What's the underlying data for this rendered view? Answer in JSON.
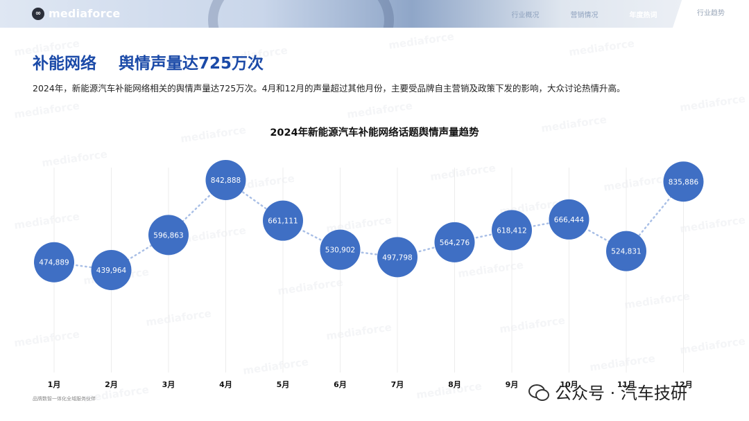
{
  "header": {
    "logo_text": "mediaforce",
    "nav": [
      "行业概况",
      "营销情况",
      "年度热词",
      "行业趋势"
    ],
    "active_nav": "年度热词"
  },
  "slide": {
    "title": "补能网络    舆情声量达725万次",
    "subtitle": "2024年，新能源汽车补能网络相关的舆情声量达725万次。4月和12月的声量超过其他月份，主要受品牌自主营销及政策下发的影响，大众讨论热情升高。"
  },
  "chart_data": {
    "type": "line",
    "title": "2024年新能源汽车补能网络话题舆情声量趋势",
    "categories": [
      "1月",
      "2月",
      "3月",
      "4月",
      "5月",
      "6月",
      "7月",
      "8月",
      "9月",
      "10月",
      "11月",
      "12月"
    ],
    "values": [
      474889,
      439964,
      596863,
      842888,
      661111,
      530902,
      497798,
      564276,
      618412,
      666444,
      524831,
      835886
    ],
    "value_labels": [
      "474,889",
      "439,964",
      "596,863",
      "842,888",
      "661,111",
      "530,902",
      "497,798",
      "564,276",
      "618,412",
      "666,444",
      "524,831",
      "835,886"
    ],
    "line_style": "dotted",
    "marker": "circle",
    "marker_color": "#3f6fc4",
    "line_color": "#a9bfe6",
    "grid": "vertical"
  },
  "footer": {
    "note": "品牌数智一体化全域服务伙伴",
    "wechat": "公众号 · 汽车技研"
  },
  "watermark": "mediaforce"
}
